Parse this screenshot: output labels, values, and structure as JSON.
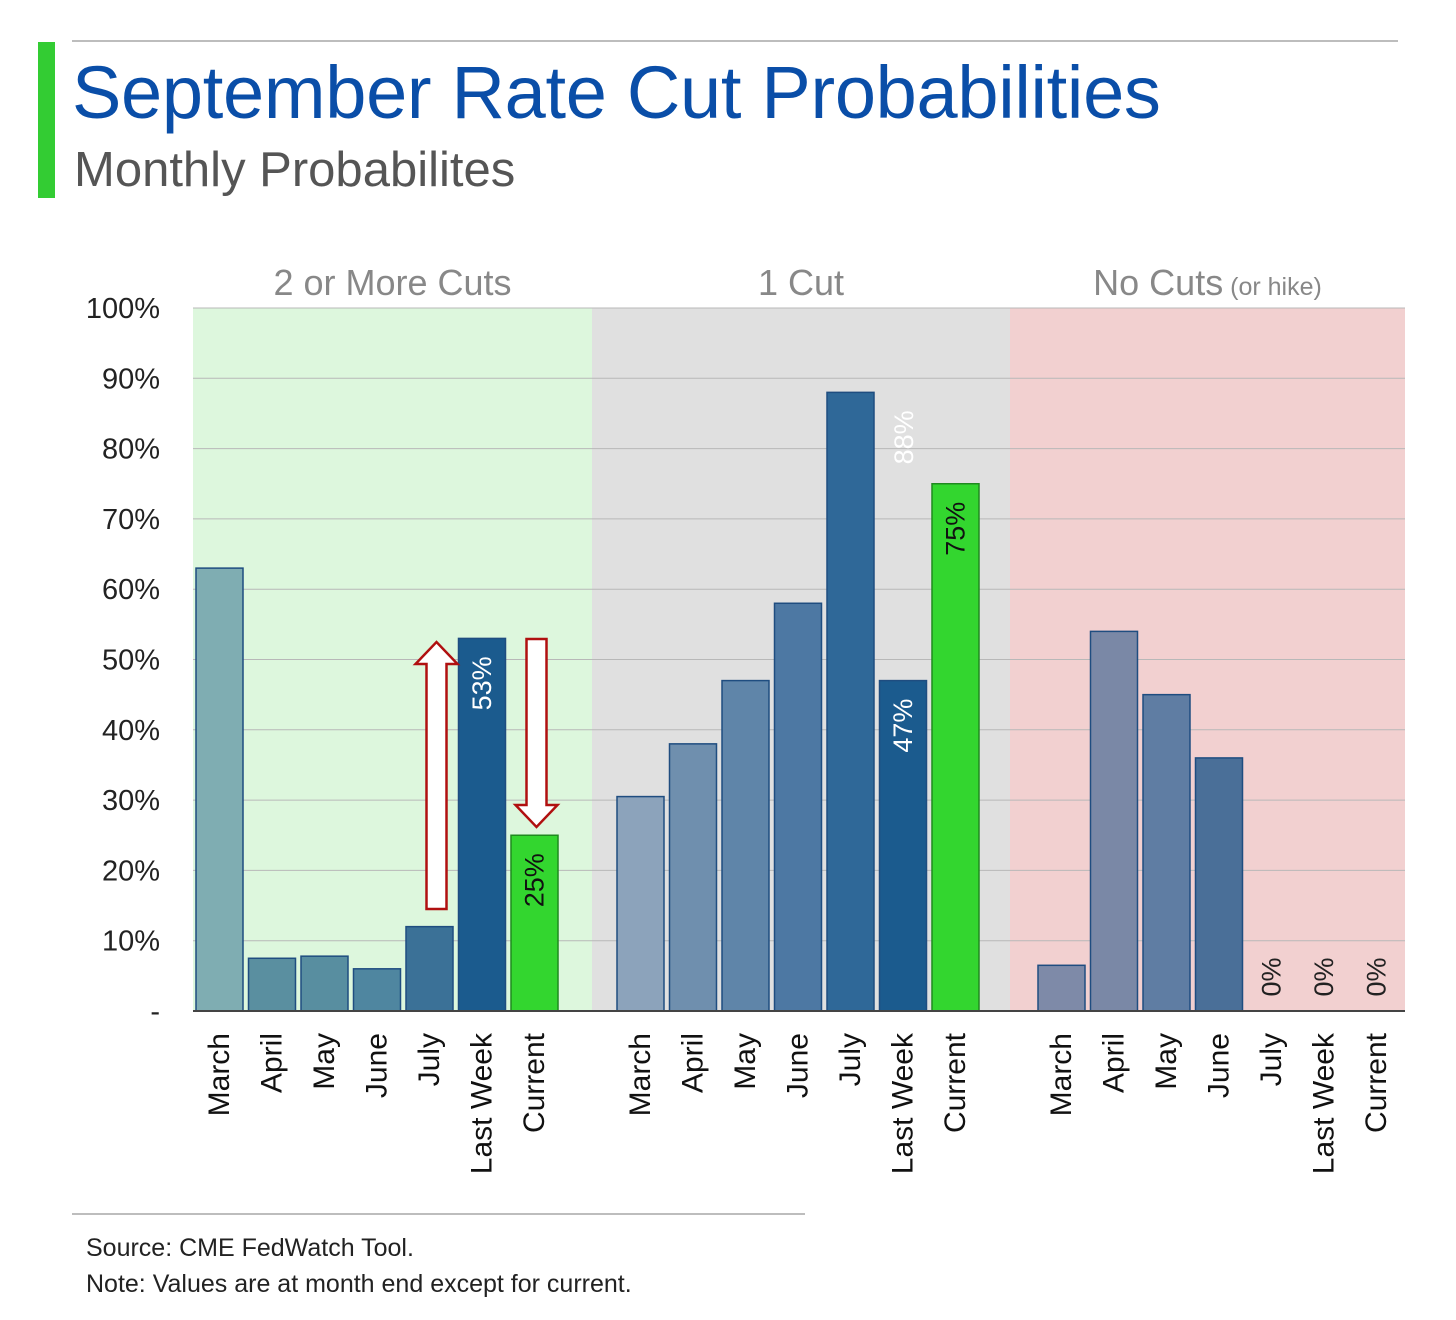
{
  "header": {
    "title": "September Rate Cut Probabilities",
    "subtitle": "Monthly Probabilites"
  },
  "footer": {
    "source": "Source: CME FedWatch Tool.",
    "note": "Note: Values are at month end except for current."
  },
  "colors": {
    "title": "#0a4ea8",
    "accent": "#33cc33",
    "panel_cuts2": "#ddf7dd",
    "panel_cut1": "#e0e0e0",
    "panel_nocut": "#f2d0d0",
    "current_bar": "#33d62f",
    "arrow": "#b01010"
  },
  "chart_data": {
    "type": "bar",
    "y_ticks": [
      "-",
      "10%",
      "20%",
      "30%",
      "40%",
      "50%",
      "60%",
      "70%",
      "80%",
      "90%",
      "100%"
    ],
    "ylim": [
      0,
      100
    ],
    "grid": true,
    "categories": [
      "March",
      "April",
      "May",
      "June",
      "July",
      "Last Week",
      "Current"
    ],
    "groups": [
      {
        "name": "2 or More Cuts",
        "name_suffix": "",
        "values": [
          63,
          7.5,
          7.8,
          6,
          12,
          53,
          25
        ],
        "labels": [
          "",
          "",
          "",
          "",
          "",
          "53%",
          "25%"
        ]
      },
      {
        "name": "1 Cut",
        "name_suffix": "",
        "values": [
          30.5,
          38,
          47,
          58,
          88,
          47,
          75
        ],
        "labels": [
          "",
          "",
          "",
          "",
          "88%",
          "47%",
          "75%"
        ]
      },
      {
        "name": "No Cuts",
        "name_suffix": "(or hike)",
        "values": [
          6.5,
          54,
          45,
          36,
          0,
          0,
          0
        ],
        "labels": [
          "",
          "",
          "",
          "",
          "0%",
          "0%",
          "0%"
        ]
      }
    ]
  }
}
